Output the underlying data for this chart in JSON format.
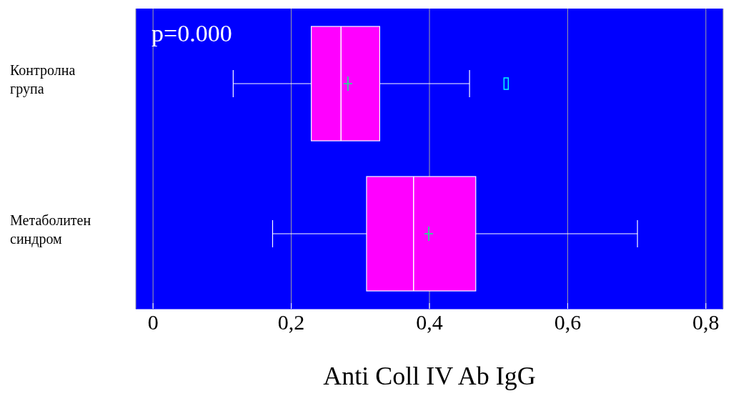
{
  "chart_data": {
    "type": "box",
    "orientation": "horizontal",
    "categories": [
      "Контролна група",
      "Метаболитен синдром"
    ],
    "series": [
      {
        "color": "#ff00ff",
        "boxes": [
          {
            "low": 0.116,
            "q1": 0.229,
            "median": 0.272,
            "q3": 0.328,
            "high": 0.458,
            "mean": 0.282,
            "outliers": [
              0.511
            ]
          },
          {
            "low": 0.173,
            "q1": 0.309,
            "median": 0.377,
            "q3": 0.467,
            "high": 0.701,
            "mean": 0.399
          }
        ]
      }
    ],
    "xlim": [
      -0.025,
      0.825
    ],
    "xticks": [
      {
        "value": 0,
        "label": "0"
      },
      {
        "value": 0.2,
        "label": "0,2"
      },
      {
        "value": 0.4,
        "label": "0,4"
      },
      {
        "value": 0.6,
        "label": "0,6"
      },
      {
        "value": 0.8,
        "label": "0,8"
      }
    ],
    "xlabel": "Anti Coll IV Ab IgG",
    "annotations": [
      "p=0.000"
    ],
    "grid": "x"
  }
}
